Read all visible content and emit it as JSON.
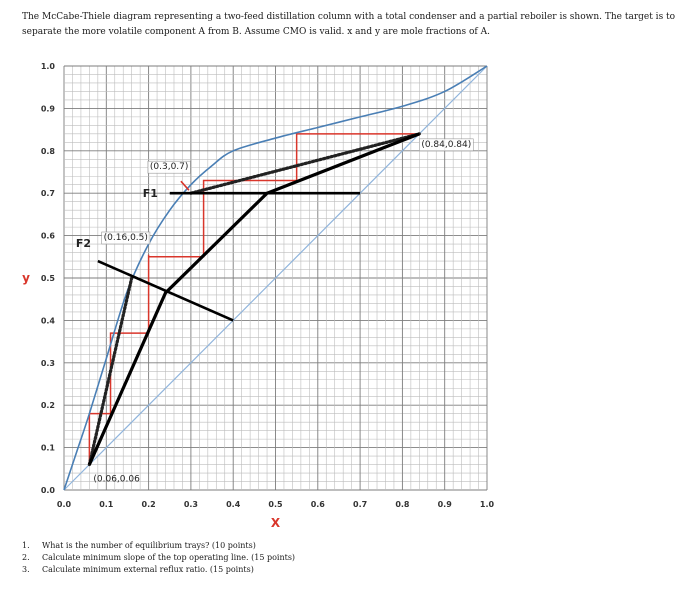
{
  "intro": "The McCabe-Thiele diagram representing a two-feed distillation column with a total condenser and a partial reboiler is shown. The target is to separate the more volatile component A from B. Assume CMO is valid. x and y are mole fractions of A.",
  "chart_data": {
    "type": "line",
    "xlabel": "X",
    "ylabel": "y",
    "xlim": [
      0,
      1
    ],
    "ylim": [
      0,
      1
    ],
    "grid": true,
    "x_ticks": [
      "0.0",
      "0.1",
      "0.2",
      "0.3",
      "0.4",
      "0.5",
      "0.6",
      "0.7",
      "0.8",
      "0.9",
      "1.0"
    ],
    "y_ticks": [
      "0.0",
      "0.1",
      "0.2",
      "0.3",
      "0.4",
      "0.5",
      "0.6",
      "0.7",
      "0.8",
      "0.9",
      "1.0"
    ],
    "series": [
      {
        "kind": "diagonal",
        "color": "#8fb4dc",
        "points": [
          [
            0,
            0
          ],
          [
            1,
            1
          ]
        ]
      },
      {
        "kind": "equilibrium",
        "color": "#4a7fb5",
        "points": [
          [
            0,
            0
          ],
          [
            0.03,
            0.09
          ],
          [
            0.06,
            0.18
          ],
          [
            0.1,
            0.31
          ],
          [
            0.15,
            0.47
          ],
          [
            0.2,
            0.58
          ],
          [
            0.25,
            0.66
          ],
          [
            0.3,
            0.72
          ],
          [
            0.35,
            0.765
          ],
          [
            0.4,
            0.8
          ],
          [
            0.5,
            0.83
          ],
          [
            0.6,
            0.855
          ],
          [
            0.7,
            0.88
          ],
          [
            0.8,
            0.905
          ],
          [
            0.9,
            0.94
          ],
          [
            1.0,
            1.0
          ]
        ]
      },
      {
        "kind": "operating-line",
        "color": "#000000",
        "points": [
          [
            0.06,
            0.06
          ],
          [
            0.24,
            0.465
          ],
          [
            0.48,
            0.7
          ],
          [
            0.84,
            0.84
          ]
        ]
      },
      {
        "kind": "feed-line-F1",
        "color": "#000000",
        "points": [
          [
            0.25,
            0.7
          ],
          [
            0.7,
            0.7
          ]
        ]
      },
      {
        "kind": "feed-line-F2",
        "color": "#000000",
        "points": [
          [
            0.08,
            0.54
          ],
          [
            0.4,
            0.4
          ]
        ]
      },
      {
        "kind": "min-reflux-dotted-upper",
        "color": "#222222",
        "points": [
          [
            0.3,
            0.7
          ],
          [
            0.84,
            0.84
          ]
        ]
      },
      {
        "kind": "min-reflux-dotted-lower",
        "color": "#222222",
        "points": [
          [
            0.06,
            0.06
          ],
          [
            0.16,
            0.5
          ]
        ]
      },
      {
        "kind": "stages",
        "color": "#d9362b",
        "points": [
          [
            0.84,
            0.84
          ],
          [
            0.55,
            0.84
          ],
          [
            0.55,
            0.73
          ],
          [
            0.34,
            0.73
          ],
          [
            0.34,
            0.73
          ],
          [
            0.33,
            0.73
          ],
          [
            0.33,
            0.72
          ],
          [
            0.33,
            0.55
          ],
          [
            0.2,
            0.55
          ],
          [
            0.2,
            0.555
          ],
          [
            0.2,
            0.37
          ],
          [
            0.11,
            0.37
          ],
          [
            0.11,
            0.18
          ],
          [
            0.06,
            0.18
          ],
          [
            0.06,
            0.06
          ]
        ]
      }
    ],
    "annotations": [
      {
        "id": "pt-084",
        "text": "(0.84,0.84)",
        "x": 0.84,
        "y": 0.84
      },
      {
        "id": "pt-037",
        "text": "(0.3,0.7)",
        "x": 0.3,
        "y": 0.7
      },
      {
        "id": "pt-0165",
        "text": "(0.16,0.5)",
        "x": 0.16,
        "y": 0.5
      },
      {
        "id": "pt-006",
        "text": "(0.06,0.06",
        "x": 0.06,
        "y": 0.06
      },
      {
        "id": "lbl-f1",
        "text": "F1",
        "x": 0.25,
        "y": 0.7
      },
      {
        "id": "lbl-f2",
        "text": "F2",
        "x": 0.08,
        "y": 0.54
      }
    ]
  },
  "questions": [
    {
      "n": "1.",
      "text": "What is the number of equilibrium trays? (10 points)"
    },
    {
      "n": "2.",
      "text": "Calculate minimum slope of the top operating line. (15 points)"
    },
    {
      "n": "3.",
      "text": "Calculate minimum external reflux ratio. (15 points)"
    }
  ]
}
